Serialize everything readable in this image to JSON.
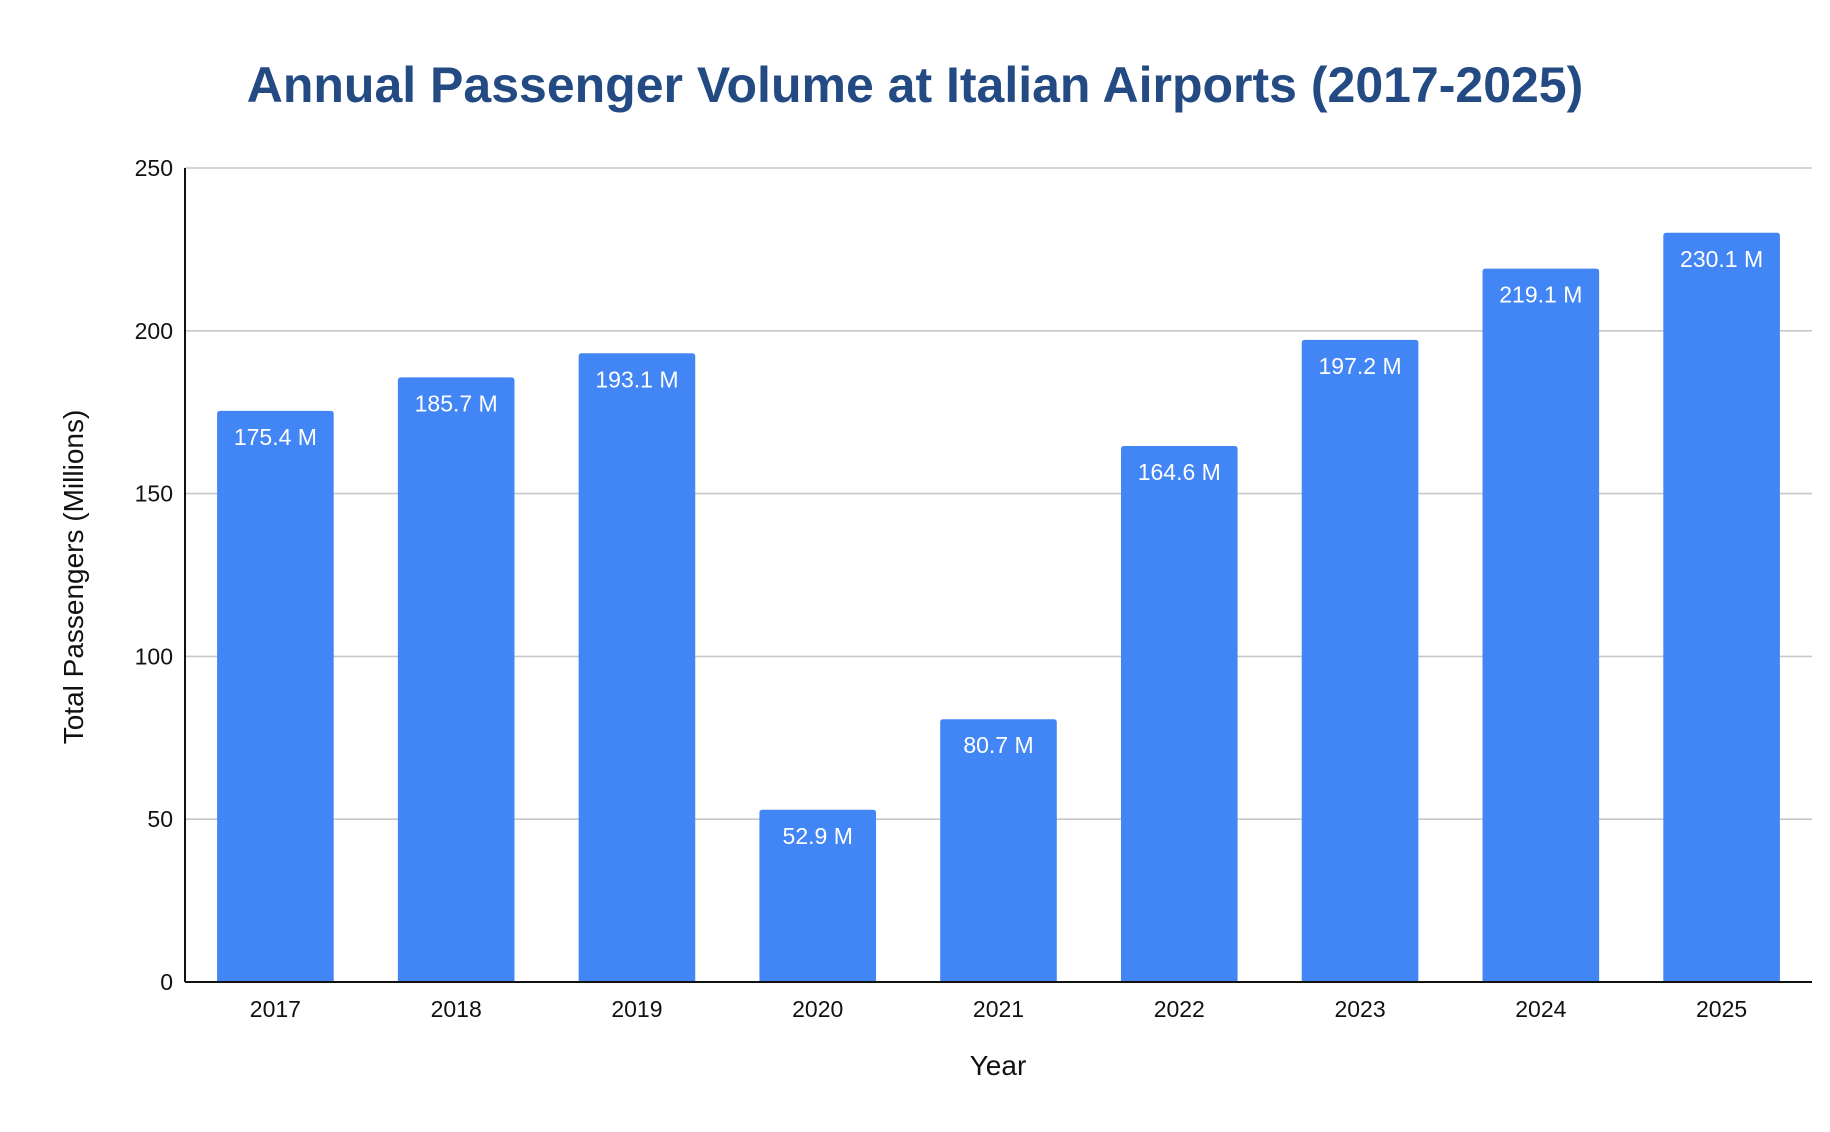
{
  "chart_data": {
    "type": "bar",
    "title": "Annual Passenger Volume at Italian Airports (2017-2025)",
    "xlabel": "Year",
    "ylabel": "Total Passengers (Millions)",
    "categories": [
      "2017",
      "2018",
      "2019",
      "2020",
      "2021",
      "2022",
      "2023",
      "2024",
      "2025"
    ],
    "values": [
      175.4,
      185.7,
      193.1,
      52.9,
      80.7,
      164.6,
      197.2,
      219.1,
      230.1
    ],
    "data_labels": [
      "175.4 M",
      "185.7 M",
      "193.1 M",
      "52.9 M",
      "80.7 M",
      "164.6 M",
      "197.2 M",
      "219.1 M",
      "230.1 M"
    ],
    "ylim": [
      0,
      250
    ],
    "y_ticks": [
      0,
      50,
      100,
      150,
      200,
      250
    ],
    "grid": true,
    "legend": "none",
    "bar_color": "#4285f4",
    "title_color": "#234a82"
  }
}
